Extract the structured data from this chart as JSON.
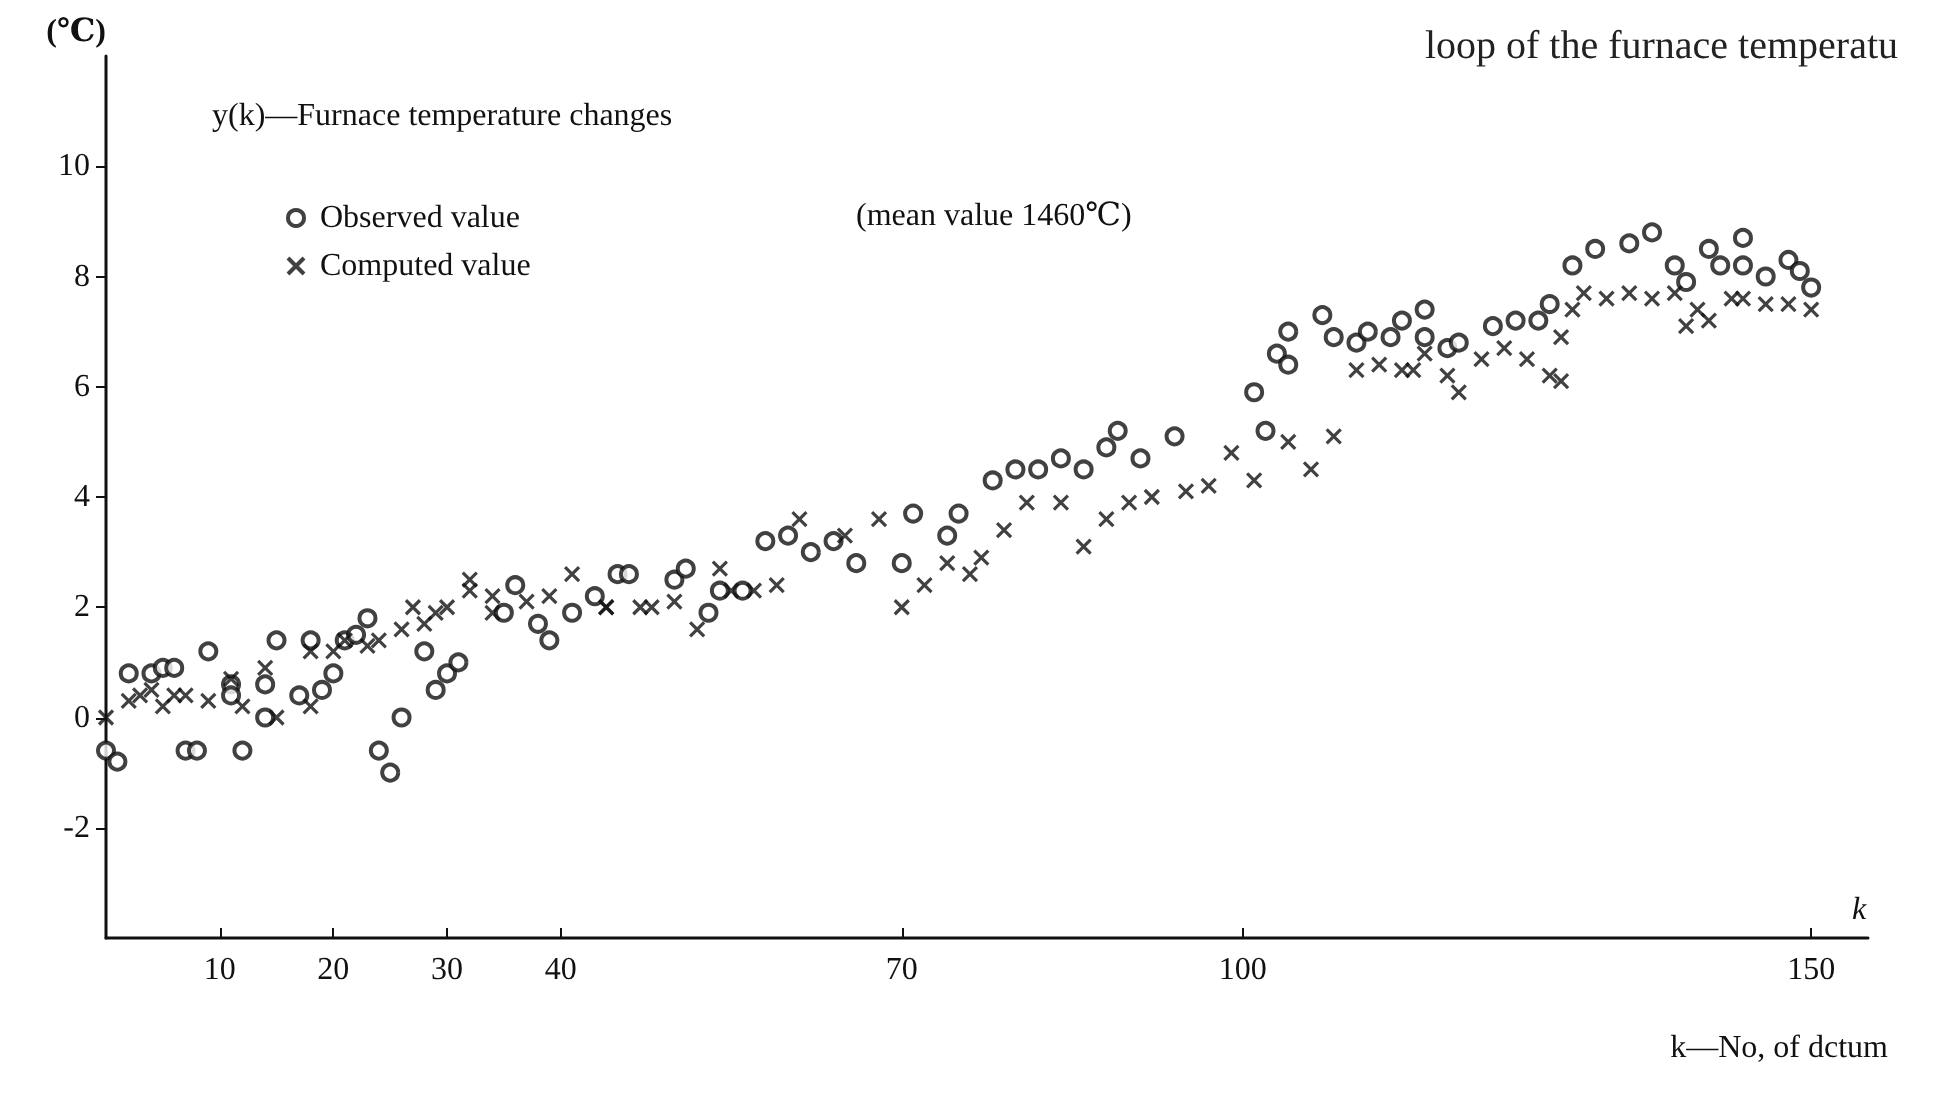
{
  "chart_data": {
    "type": "scatter",
    "title": "loop of the furnace temperatu",
    "xlabel": "k",
    "ylabel": "(℃)",
    "annotations": [
      "y(k)—Furnace temperature changes",
      "(mean value 1460℃)",
      "k—No, of dctum"
    ],
    "xlim": [
      0,
      155
    ],
    "xticks": [
      10,
      20,
      30,
      40,
      70,
      100,
      150
    ],
    "ylim": [
      -4,
      12
    ],
    "yticks": [
      -2,
      0,
      2,
      4,
      6,
      8,
      10
    ],
    "grid": false,
    "legend": "top left",
    "series": [
      {
        "name": "Observed value",
        "color": "#111111",
        "marker": "circle",
        "x": [
          0,
          1,
          2,
          4,
          5,
          6,
          7,
          8,
          9,
          11,
          11,
          12,
          14,
          14,
          15,
          17,
          18,
          19,
          20,
          21,
          22,
          23,
          24,
          25,
          26,
          28,
          29,
          30,
          31,
          35,
          36,
          38,
          39,
          41,
          43,
          45,
          46,
          50,
          51,
          53,
          54,
          56,
          58,
          60,
          62,
          64,
          66,
          70,
          71,
          74,
          75,
          78,
          80,
          82,
          84,
          86,
          88,
          89,
          91,
          94,
          102,
          101,
          103,
          104,
          104,
          107,
          108,
          110,
          111,
          113,
          114,
          116,
          116,
          118,
          119,
          122,
          124,
          126,
          127,
          129,
          131,
          134,
          136,
          138,
          139,
          141,
          142,
          144,
          144,
          146,
          148,
          149,
          150
        ],
        "values": [
          -0.6,
          -0.8,
          0.8,
          0.8,
          0.9,
          0.9,
          -0.6,
          -0.6,
          1.2,
          0.6,
          0.4,
          -0.6,
          0,
          0.6,
          1.4,
          0.4,
          1.4,
          0.5,
          0.8,
          1.4,
          1.5,
          1.8,
          -0.6,
          -1,
          0,
          1.2,
          0.5,
          0.8,
          1,
          1.9,
          2.4,
          1.7,
          1.4,
          1.9,
          2.2,
          2.6,
          2.6,
          2.5,
          2.7,
          1.9,
          2.3,
          2.3,
          3.2,
          3.3,
          3,
          3.2,
          2.8,
          2.8,
          3.7,
          3.3,
          3.7,
          4.3,
          4.5,
          4.5,
          4.7,
          4.5,
          4.9,
          5.2,
          4.7,
          5.1,
          5.2,
          5.9,
          6.6,
          7,
          6.4,
          7.3,
          6.9,
          6.8,
          7,
          6.9,
          7.2,
          7.4,
          6.9,
          6.7,
          6.8,
          7.1,
          7.2,
          7.2,
          7.5,
          8.2,
          8.5,
          8.6,
          8.8,
          8.2,
          7.9,
          8.5,
          8.2,
          8.2,
          8.7,
          8,
          8.3,
          8.1,
          7.8
        ]
      },
      {
        "name": "Computed value",
        "color": "#111111",
        "marker": "cross",
        "x": [
          0,
          2,
          3,
          4,
          5,
          6,
          7,
          9,
          11,
          12,
          14,
          15,
          18,
          18,
          20,
          21,
          23,
          24,
          26,
          27,
          28,
          29,
          30,
          32,
          32,
          34,
          34,
          37,
          39,
          41,
          44,
          44,
          47,
          48,
          50,
          52,
          54,
          55,
          57,
          59,
          61,
          65,
          68,
          70,
          72,
          74,
          76,
          77,
          79,
          81,
          84,
          86,
          88,
          90,
          92,
          95,
          97,
          99,
          101,
          104,
          106,
          108,
          110,
          112,
          114,
          115,
          116,
          118,
          119,
          121,
          123,
          125,
          127,
          128,
          128,
          129,
          130,
          132,
          134,
          136,
          138,
          139,
          140,
          141,
          143,
          144,
          146,
          148,
          150
        ],
        "values": [
          0,
          0.3,
          0.4,
          0.5,
          0.2,
          0.4,
          0.4,
          0.3,
          0.7,
          0.2,
          0.9,
          0,
          0.2,
          1.2,
          1.2,
          1.4,
          1.3,
          1.4,
          1.6,
          2,
          1.7,
          1.9,
          2,
          2.3,
          2.5,
          2.2,
          1.9,
          2.1,
          2.2,
          2.6,
          2,
          2,
          2,
          2,
          2.1,
          1.6,
          2.7,
          2.3,
          2.3,
          2.4,
          3.6,
          3.3,
          3.6,
          2,
          2.4,
          2.8,
          2.6,
          2.9,
          3.4,
          3.9,
          3.9,
          3.1,
          3.6,
          3.9,
          4,
          4.1,
          4.2,
          4.8,
          4.3,
          5,
          4.5,
          5.1,
          6.3,
          6.4,
          6.3,
          6.3,
          6.6,
          6.2,
          5.9,
          6.5,
          6.7,
          6.5,
          6.2,
          6.1,
          6.9,
          7.4,
          7.7,
          7.6,
          7.7,
          7.6,
          7.7,
          7.1,
          7.4,
          7.2,
          7.6,
          7.6,
          7.5,
          7.5,
          7.4
        ]
      }
    ]
  }
}
